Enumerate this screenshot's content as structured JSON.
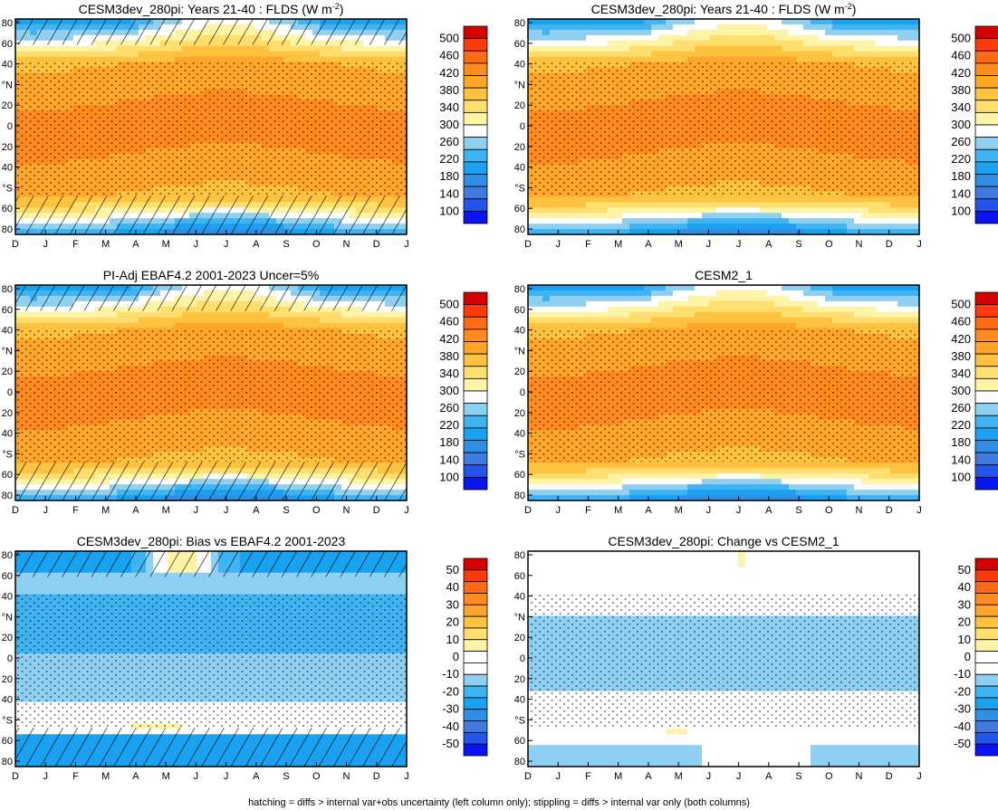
{
  "footer": "hatching = diffs > internal var+obs uncertainty (left column only); stippling = diffs > internal var only (both columns)",
  "colors": {
    "abs_scale": [
      "#0a14f0",
      "#2255e8",
      "#3f7be0",
      "#2f8fe6",
      "#1aa2f0",
      "#40b3f2",
      "#8fd0f2",
      "#ffffff",
      "#fff3a6",
      "#ffde6e",
      "#ffc23f",
      "#ffa52a",
      "#ff8a1d",
      "#ff6a14",
      "#ff3a0a",
      "#d50000"
    ],
    "diff_scale": [
      "#0a14f0",
      "#2255e8",
      "#3f7be0",
      "#2f8fe6",
      "#1aa2f0",
      "#40b3f2",
      "#8fd0f2",
      "#ffffff",
      "#ffffff",
      "#fff3a6",
      "#ffde6e",
      "#ffc23f",
      "#ffa52a",
      "#ff8a1d",
      "#ff6a14",
      "#ff3a0a",
      "#d50000"
    ]
  },
  "chart_data": [
    {
      "type": "heatmap",
      "title": "CESM3dev_280pi: Years 21-40 : FLDS (W m",
      "title_sup": "-2",
      "title_tail": ")",
      "x_ticks": [
        "D",
        "J",
        "F",
        "M",
        "A",
        "M",
        "J",
        "J",
        "A",
        "S",
        "O",
        "N",
        "D",
        "J"
      ],
      "y_ticks": [
        "80",
        "60",
        "40",
        "°N",
        "20",
        "0",
        "20",
        "40",
        "°S",
        "60",
        "80"
      ],
      "colorbar_ticks": [
        "500",
        "460",
        "420",
        "380",
        "340",
        "300",
        "260",
        "220",
        "180",
        "140",
        "100"
      ],
      "scale": "abs",
      "field": "abs",
      "hatching": true,
      "stippling": true
    },
    {
      "type": "heatmap",
      "title": "CESM3dev_280pi: Years 21-40 : FLDS (W m",
      "title_sup": "-2",
      "title_tail": ")",
      "x_ticks": [
        "D",
        "J",
        "F",
        "M",
        "A",
        "M",
        "J",
        "J",
        "A",
        "S",
        "O",
        "N",
        "D",
        "J"
      ],
      "y_ticks": [
        "80",
        "60",
        "40",
        "°N",
        "20",
        "0",
        "20",
        "40",
        "°S",
        "60",
        "80"
      ],
      "colorbar_ticks": [
        "500",
        "460",
        "420",
        "380",
        "340",
        "300",
        "260",
        "220",
        "180",
        "140",
        "100"
      ],
      "scale": "abs",
      "field": "abs",
      "hatching": false,
      "stippling": true
    },
    {
      "type": "heatmap",
      "title": "PI-Adj EBAF4.2 2001-2023 Uncer=5%",
      "x_ticks": [
        "D",
        "J",
        "F",
        "M",
        "A",
        "M",
        "J",
        "J",
        "A",
        "S",
        "O",
        "N",
        "D",
        "J"
      ],
      "y_ticks": [
        "80",
        "60",
        "40",
        "°N",
        "20",
        "0",
        "20",
        "40",
        "°S",
        "60",
        "80"
      ],
      "colorbar_ticks": [
        "500",
        "460",
        "420",
        "380",
        "340",
        "300",
        "260",
        "220",
        "180",
        "140",
        "100"
      ],
      "scale": "abs",
      "field": "abs",
      "hatching": true,
      "stippling": true
    },
    {
      "type": "heatmap",
      "title": "CESM2_1",
      "x_ticks": [
        "D",
        "J",
        "F",
        "M",
        "A",
        "M",
        "J",
        "J",
        "A",
        "S",
        "O",
        "N",
        "D",
        "J"
      ],
      "y_ticks": [
        "80",
        "60",
        "40",
        "°N",
        "20",
        "0",
        "20",
        "40",
        "°S",
        "60",
        "80"
      ],
      "colorbar_ticks": [
        "500",
        "460",
        "420",
        "380",
        "340",
        "300",
        "260",
        "220",
        "180",
        "140",
        "100"
      ],
      "scale": "abs",
      "field": "abs",
      "hatching": false,
      "stippling": true
    },
    {
      "type": "heatmap",
      "title": "CESM3dev_280pi: Bias vs EBAF4.2 2001-2023",
      "x_ticks": [
        "D",
        "J",
        "F",
        "M",
        "A",
        "M",
        "J",
        "J",
        "A",
        "S",
        "O",
        "N",
        "D",
        "J"
      ],
      "y_ticks": [
        "80",
        "60",
        "40",
        "°N",
        "20",
        "0",
        "20",
        "40",
        "°S",
        "60",
        "80"
      ],
      "colorbar_ticks": [
        "50",
        "40",
        "30",
        "20",
        "10",
        "0",
        "-10",
        "-20",
        "-30",
        "-40",
        "-50"
      ],
      "scale": "diff",
      "field": "bias",
      "hatching": true,
      "stippling": true
    },
    {
      "type": "heatmap",
      "title": "CESM3dev_280pi: Change vs CESM2_1",
      "x_ticks": [
        "D",
        "J",
        "F",
        "M",
        "A",
        "M",
        "J",
        "J",
        "A",
        "S",
        "O",
        "N",
        "D",
        "J"
      ],
      "y_ticks": [
        "80",
        "60",
        "40",
        "°N",
        "20",
        "0",
        "20",
        "40",
        "°S",
        "60",
        "80"
      ],
      "colorbar_ticks": [
        "50",
        "40",
        "30",
        "20",
        "10",
        "0",
        "-10",
        "-20",
        "-30",
        "-40",
        "-50"
      ],
      "scale": "diff",
      "field": "change",
      "hatching": false,
      "stippling": true
    }
  ]
}
